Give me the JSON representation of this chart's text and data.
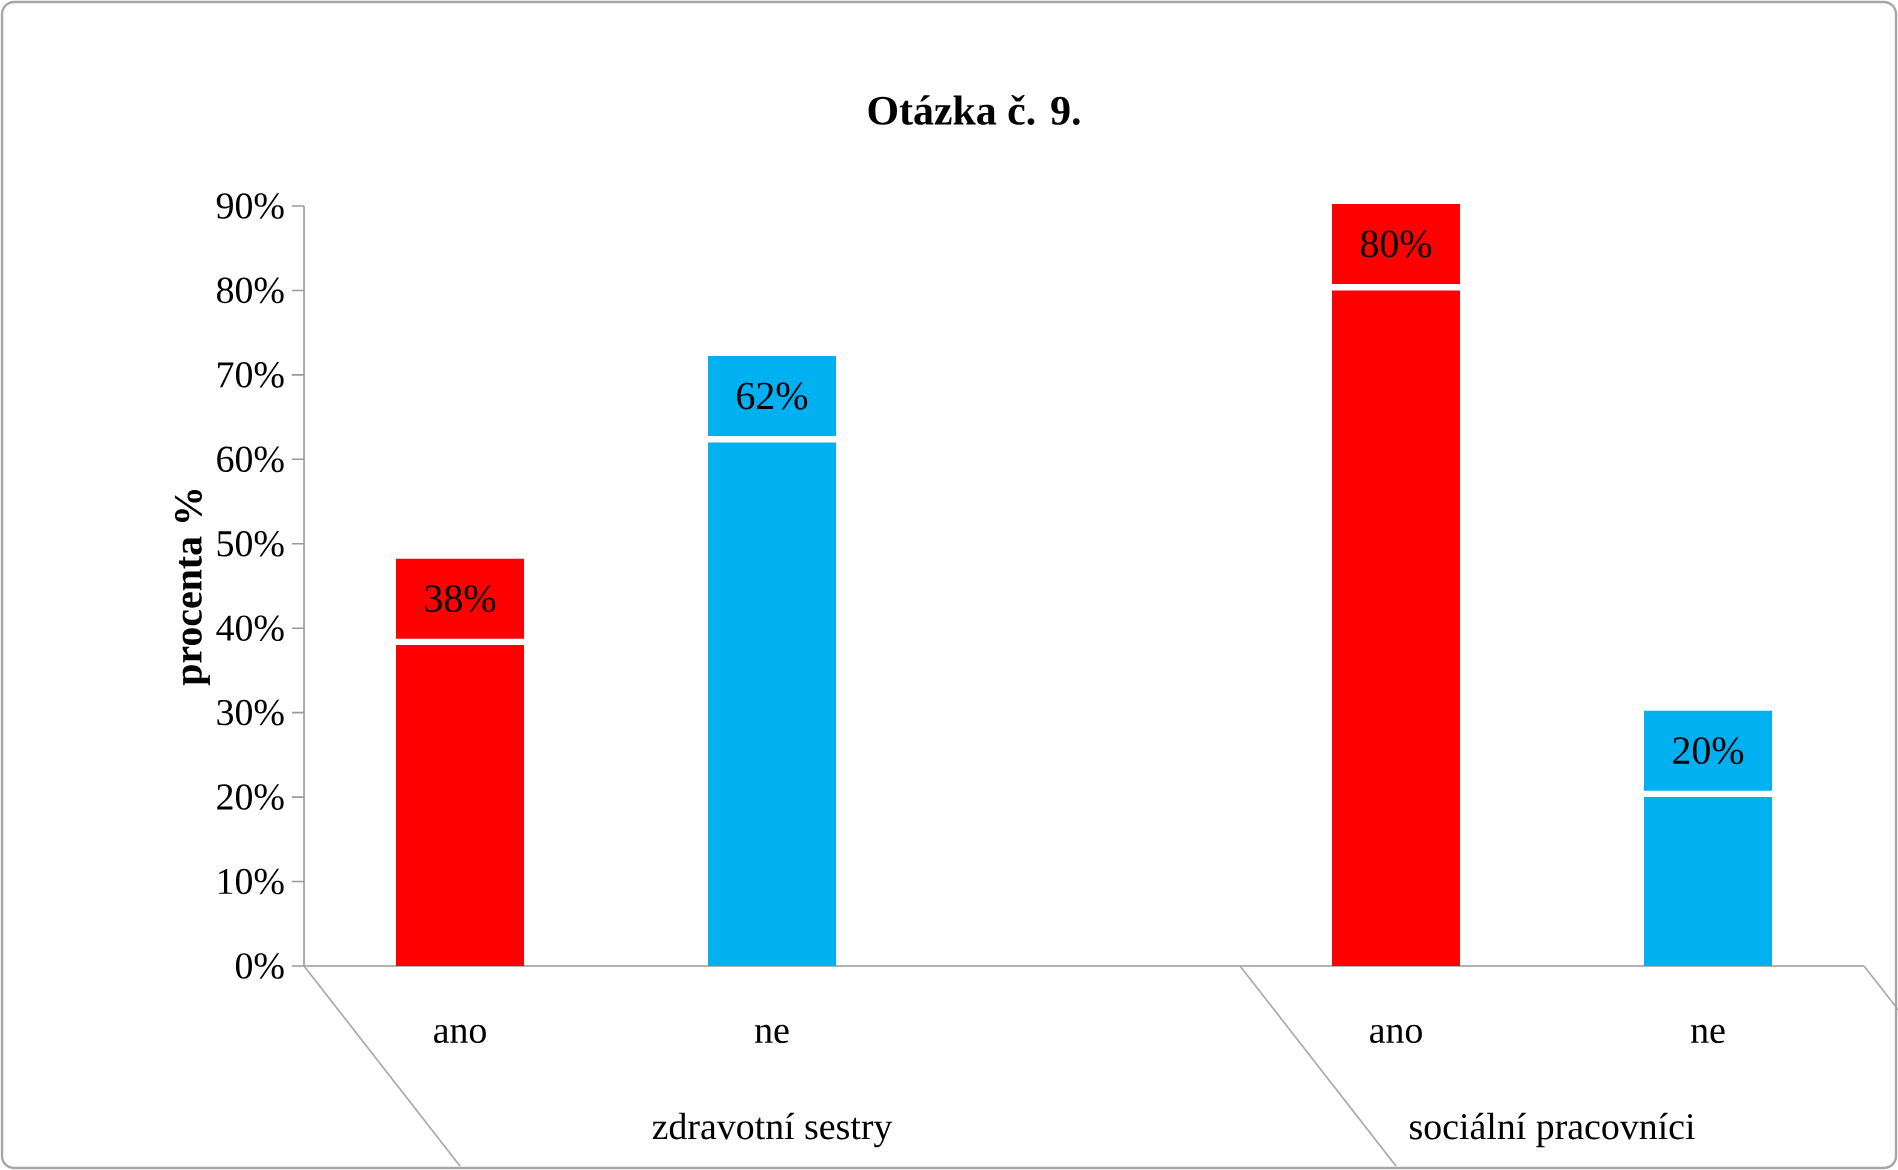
{
  "chart_data": {
    "type": "bar",
    "title": "Otázka č. 9.",
    "ylabel": "procenta %",
    "categories": [
      "ano",
      "ne",
      null,
      "ano",
      "ne"
    ],
    "values": [
      38,
      62,
      null,
      80,
      20
    ],
    "colors": [
      "#ff0000",
      "#00b0f0",
      null,
      "#ff0000",
      "#00b0f0"
    ],
    "value_labels": [
      "38%",
      "62%",
      null,
      "80%",
      "20%"
    ],
    "ylim": [
      0,
      90
    ],
    "yticks": [
      {
        "value": 0,
        "label": "0%"
      },
      {
        "value": 10,
        "label": "10%"
      },
      {
        "value": 20,
        "label": "20%"
      },
      {
        "value": 30,
        "label": "30%"
      },
      {
        "value": 40,
        "label": "40%"
      },
      {
        "value": 50,
        "label": "50%"
      },
      {
        "value": 60,
        "label": "60%"
      },
      {
        "value": 70,
        "label": "70%"
      },
      {
        "value": 80,
        "label": "80%"
      },
      {
        "value": 90,
        "label": "90%"
      }
    ],
    "annotations": [
      "zdravotní sestry",
      "sociální pracovníci"
    ]
  }
}
